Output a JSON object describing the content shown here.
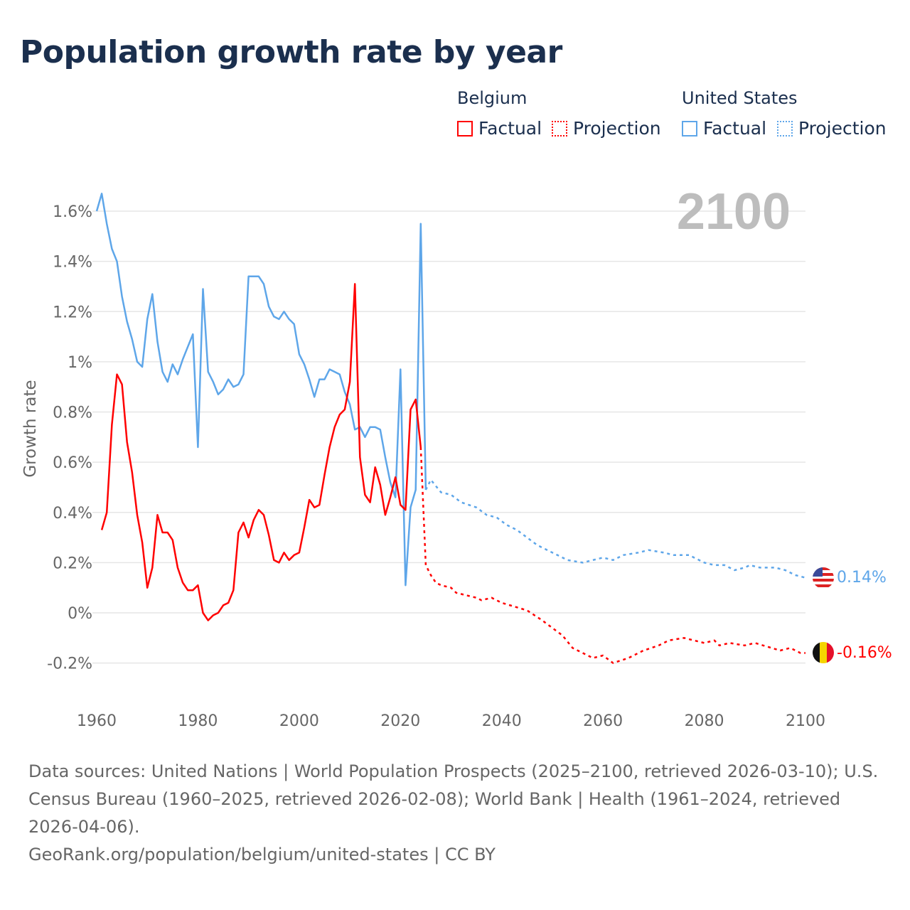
{
  "title": "Population growth rate by year",
  "legend": {
    "belgium": {
      "name": "Belgium",
      "factual": "Factual",
      "projection": "Projection",
      "color": "#ff0000"
    },
    "us": {
      "name": "United States",
      "factual": "Factual",
      "projection": "Projection",
      "color": "#5ea6e9"
    }
  },
  "year_label": "2100",
  "end_labels": {
    "us": "0.14%",
    "belgium": "-0.16%"
  },
  "footer": {
    "sources": "Data sources: United Nations | World Population Prospects (2025–2100, retrieved 2026-03-10); U.S. Census Bureau (1960–2025, retrieved 2026-02-08); World Bank | Health (1961–2024, retrieved 2026-04-06).",
    "credit": "GeoRank.org/population/belgium/united-states | CC BY"
  },
  "chart_data": {
    "type": "line",
    "title": "Population growth rate by year",
    "xlabel": "",
    "ylabel": "Growth rate",
    "xlim": [
      1960,
      2100
    ],
    "ylim": [
      -0.2,
      1.6
    ],
    "xticks": [
      "1960",
      "1980",
      "2000",
      "2020",
      "2040",
      "2060",
      "2080",
      "2100"
    ],
    "yticks": [
      {
        "v": -0.2,
        "l": "-0.2%"
      },
      {
        "v": 0,
        "l": "0%"
      },
      {
        "v": 0.2,
        "l": "0.2%"
      },
      {
        "v": 0.4,
        "l": "0.4%"
      },
      {
        "v": 0.6,
        "l": "0.6%"
      },
      {
        "v": 0.8,
        "l": "0.8%"
      },
      {
        "v": 1,
        "l": "1%"
      },
      {
        "v": 1.2,
        "l": "1.2%"
      },
      {
        "v": 1.4,
        "l": "1.4%"
      },
      {
        "v": 1.6,
        "l": "1.6%"
      }
    ],
    "grid": true,
    "legend_position": "top-right",
    "series": [
      {
        "name": "United States Factual",
        "color": "#5ea6e9",
        "dashed": false,
        "points": [
          [
            1960,
            1.6
          ],
          [
            1961,
            1.67
          ],
          [
            1962,
            1.55
          ],
          [
            1963,
            1.45
          ],
          [
            1964,
            1.4
          ],
          [
            1965,
            1.26
          ],
          [
            1966,
            1.16
          ],
          [
            1967,
            1.09
          ],
          [
            1968,
            1.0
          ],
          [
            1969,
            0.98
          ],
          [
            1970,
            1.17
          ],
          [
            1971,
            1.27
          ],
          [
            1972,
            1.08
          ],
          [
            1973,
            0.96
          ],
          [
            1974,
            0.92
          ],
          [
            1975,
            0.99
          ],
          [
            1976,
            0.95
          ],
          [
            1977,
            1.01
          ],
          [
            1978,
            1.06
          ],
          [
            1979,
            1.11
          ],
          [
            1980,
            0.66
          ],
          [
            1981,
            1.29
          ],
          [
            1982,
            0.96
          ],
          [
            1983,
            0.92
          ],
          [
            1984,
            0.87
          ],
          [
            1985,
            0.89
          ],
          [
            1986,
            0.93
          ],
          [
            1987,
            0.9
          ],
          [
            1988,
            0.91
          ],
          [
            1989,
            0.95
          ],
          [
            1990,
            1.34
          ],
          [
            1991,
            1.34
          ],
          [
            1992,
            1.34
          ],
          [
            1993,
            1.31
          ],
          [
            1994,
            1.22
          ],
          [
            1995,
            1.18
          ],
          [
            1996,
            1.17
          ],
          [
            1997,
            1.2
          ],
          [
            1998,
            1.17
          ],
          [
            1999,
            1.15
          ],
          [
            2000,
            1.03
          ],
          [
            2001,
            0.99
          ],
          [
            2002,
            0.93
          ],
          [
            2003,
            0.86
          ],
          [
            2004,
            0.93
          ],
          [
            2005,
            0.93
          ],
          [
            2006,
            0.97
          ],
          [
            2007,
            0.96
          ],
          [
            2008,
            0.95
          ],
          [
            2009,
            0.88
          ],
          [
            2010,
            0.83
          ],
          [
            2011,
            0.73
          ],
          [
            2012,
            0.74
          ],
          [
            2013,
            0.7
          ],
          [
            2014,
            0.74
          ],
          [
            2015,
            0.74
          ],
          [
            2016,
            0.73
          ],
          [
            2017,
            0.62
          ],
          [
            2018,
            0.52
          ],
          [
            2019,
            0.46
          ],
          [
            2020,
            0.97
          ],
          [
            2021,
            0.11
          ],
          [
            2022,
            0.42
          ],
          [
            2023,
            0.49
          ],
          [
            2024,
            1.55
          ],
          [
            2025,
            0.49
          ]
        ]
      },
      {
        "name": "United States Projection",
        "color": "#5ea6e9",
        "dashed": true,
        "points": [
          [
            2025,
            0.49
          ],
          [
            2026,
            0.53
          ],
          [
            2028,
            0.48
          ],
          [
            2030,
            0.47
          ],
          [
            2032,
            0.44
          ],
          [
            2035,
            0.42
          ],
          [
            2037,
            0.39
          ],
          [
            2039,
            0.38
          ],
          [
            2041,
            0.35
          ],
          [
            2043,
            0.33
          ],
          [
            2045,
            0.3
          ],
          [
            2047,
            0.27
          ],
          [
            2050,
            0.24
          ],
          [
            2053,
            0.21
          ],
          [
            2056,
            0.2
          ],
          [
            2060,
            0.22
          ],
          [
            2062,
            0.21
          ],
          [
            2064,
            0.23
          ],
          [
            2067,
            0.24
          ],
          [
            2069,
            0.25
          ],
          [
            2072,
            0.24
          ],
          [
            2074,
            0.23
          ],
          [
            2077,
            0.23
          ],
          [
            2080,
            0.2
          ],
          [
            2082,
            0.19
          ],
          [
            2084,
            0.19
          ],
          [
            2086,
            0.17
          ],
          [
            2088,
            0.18
          ],
          [
            2089,
            0.19
          ],
          [
            2091,
            0.18
          ],
          [
            2094,
            0.18
          ],
          [
            2096,
            0.17
          ],
          [
            2098,
            0.15
          ],
          [
            2100,
            0.14
          ]
        ]
      },
      {
        "name": "Belgium Factual",
        "color": "#ff0000",
        "dashed": false,
        "points": [
          [
            1961,
            0.33
          ],
          [
            1962,
            0.4
          ],
          [
            1963,
            0.75
          ],
          [
            1964,
            0.95
          ],
          [
            1965,
            0.91
          ],
          [
            1966,
            0.68
          ],
          [
            1967,
            0.56
          ],
          [
            1968,
            0.39
          ],
          [
            1969,
            0.28
          ],
          [
            1970,
            0.1
          ],
          [
            1971,
            0.18
          ],
          [
            1972,
            0.39
          ],
          [
            1973,
            0.32
          ],
          [
            1974,
            0.32
          ],
          [
            1975,
            0.29
          ],
          [
            1976,
            0.18
          ],
          [
            1977,
            0.12
          ],
          [
            1978,
            0.09
          ],
          [
            1979,
            0.09
          ],
          [
            1980,
            0.11
          ],
          [
            1981,
            0.0
          ],
          [
            1982,
            -0.03
          ],
          [
            1983,
            -0.01
          ],
          [
            1984,
            0.0
          ],
          [
            1985,
            0.03
          ],
          [
            1986,
            0.04
          ],
          [
            1987,
            0.09
          ],
          [
            1988,
            0.32
          ],
          [
            1989,
            0.36
          ],
          [
            1990,
            0.3
          ],
          [
            1991,
            0.37
          ],
          [
            1992,
            0.41
          ],
          [
            1993,
            0.39
          ],
          [
            1994,
            0.31
          ],
          [
            1995,
            0.21
          ],
          [
            1996,
            0.2
          ],
          [
            1997,
            0.24
          ],
          [
            1998,
            0.21
          ],
          [
            1999,
            0.23
          ],
          [
            2000,
            0.24
          ],
          [
            2001,
            0.34
          ],
          [
            2002,
            0.45
          ],
          [
            2003,
            0.42
          ],
          [
            2004,
            0.43
          ],
          [
            2005,
            0.55
          ],
          [
            2006,
            0.66
          ],
          [
            2007,
            0.74
          ],
          [
            2008,
            0.79
          ],
          [
            2009,
            0.81
          ],
          [
            2010,
            0.92
          ],
          [
            2011,
            1.31
          ],
          [
            2012,
            0.62
          ],
          [
            2013,
            0.47
          ],
          [
            2014,
            0.44
          ],
          [
            2015,
            0.58
          ],
          [
            2016,
            0.51
          ],
          [
            2017,
            0.39
          ],
          [
            2018,
            0.46
          ],
          [
            2019,
            0.54
          ],
          [
            2020,
            0.43
          ],
          [
            2021,
            0.41
          ],
          [
            2022,
            0.81
          ],
          [
            2023,
            0.85
          ],
          [
            2024,
            0.66
          ]
        ]
      },
      {
        "name": "Belgium Projection",
        "color": "#ff0000",
        "dashed": true,
        "points": [
          [
            2024,
            0.66
          ],
          [
            2025,
            0.19
          ],
          [
            2026,
            0.15
          ],
          [
            2027,
            0.12
          ],
          [
            2028,
            0.11
          ],
          [
            2030,
            0.1
          ],
          [
            2031,
            0.08
          ],
          [
            2035,
            0.06
          ],
          [
            2036,
            0.05
          ],
          [
            2038,
            0.06
          ],
          [
            2040,
            0.04
          ],
          [
            2045,
            0.01
          ],
          [
            2048,
            -0.03
          ],
          [
            2050,
            -0.06
          ],
          [
            2052,
            -0.09
          ],
          [
            2054,
            -0.14
          ],
          [
            2058,
            -0.18
          ],
          [
            2060,
            -0.17
          ],
          [
            2062,
            -0.2
          ],
          [
            2065,
            -0.18
          ],
          [
            2068,
            -0.15
          ],
          [
            2071,
            -0.13
          ],
          [
            2073,
            -0.11
          ],
          [
            2076,
            -0.1
          ],
          [
            2080,
            -0.12
          ],
          [
            2082,
            -0.11
          ],
          [
            2083,
            -0.13
          ],
          [
            2085,
            -0.12
          ],
          [
            2088,
            -0.13
          ],
          [
            2090,
            -0.12
          ],
          [
            2095,
            -0.15
          ],
          [
            2097,
            -0.14
          ],
          [
            2099,
            -0.16
          ],
          [
            2100,
            -0.16
          ]
        ]
      }
    ]
  }
}
